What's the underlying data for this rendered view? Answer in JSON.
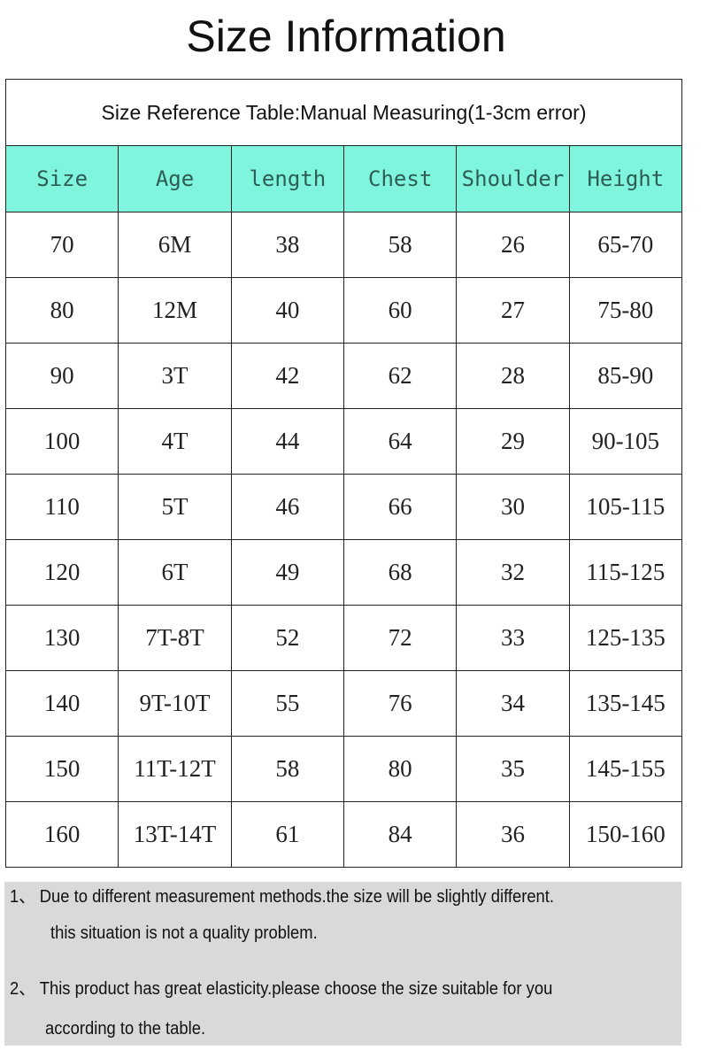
{
  "title": "Size Information",
  "table": {
    "caption": "Size Reference Table:Manual Measuring(1-3cm error)",
    "header_color": "#80f5dd",
    "columns": [
      "Size",
      "Age",
      "length",
      "Chest",
      "Shoulder",
      "Height"
    ],
    "rows": [
      [
        "70",
        "6M",
        "38",
        "58",
        "26",
        "65-70"
      ],
      [
        "80",
        "12M",
        "40",
        "60",
        "27",
        "75-80"
      ],
      [
        "90",
        "3T",
        "42",
        "62",
        "28",
        "85-90"
      ],
      [
        "100",
        "4T",
        "44",
        "64",
        "29",
        "90-105"
      ],
      [
        "110",
        "5T",
        "46",
        "66",
        "30",
        "105-115"
      ],
      [
        "120",
        "6T",
        "49",
        "68",
        "32",
        "115-125"
      ],
      [
        "130",
        "7T-8T",
        "52",
        "72",
        "33",
        "125-135"
      ],
      [
        "140",
        "9T-10T",
        "55",
        "76",
        "34",
        "135-145"
      ],
      [
        "150",
        "11T-12T",
        "58",
        "80",
        "35",
        "145-155"
      ],
      [
        "160",
        "13T-14T",
        "61",
        "84",
        "36",
        "150-160"
      ]
    ]
  },
  "notes": [
    "1、 Due to different measurement methods.the size will be slightly different.",
    "this situation is not a quality problem.",
    "2、 This product has great elasticity.please choose the size suitable for you",
    "according to the table."
  ]
}
